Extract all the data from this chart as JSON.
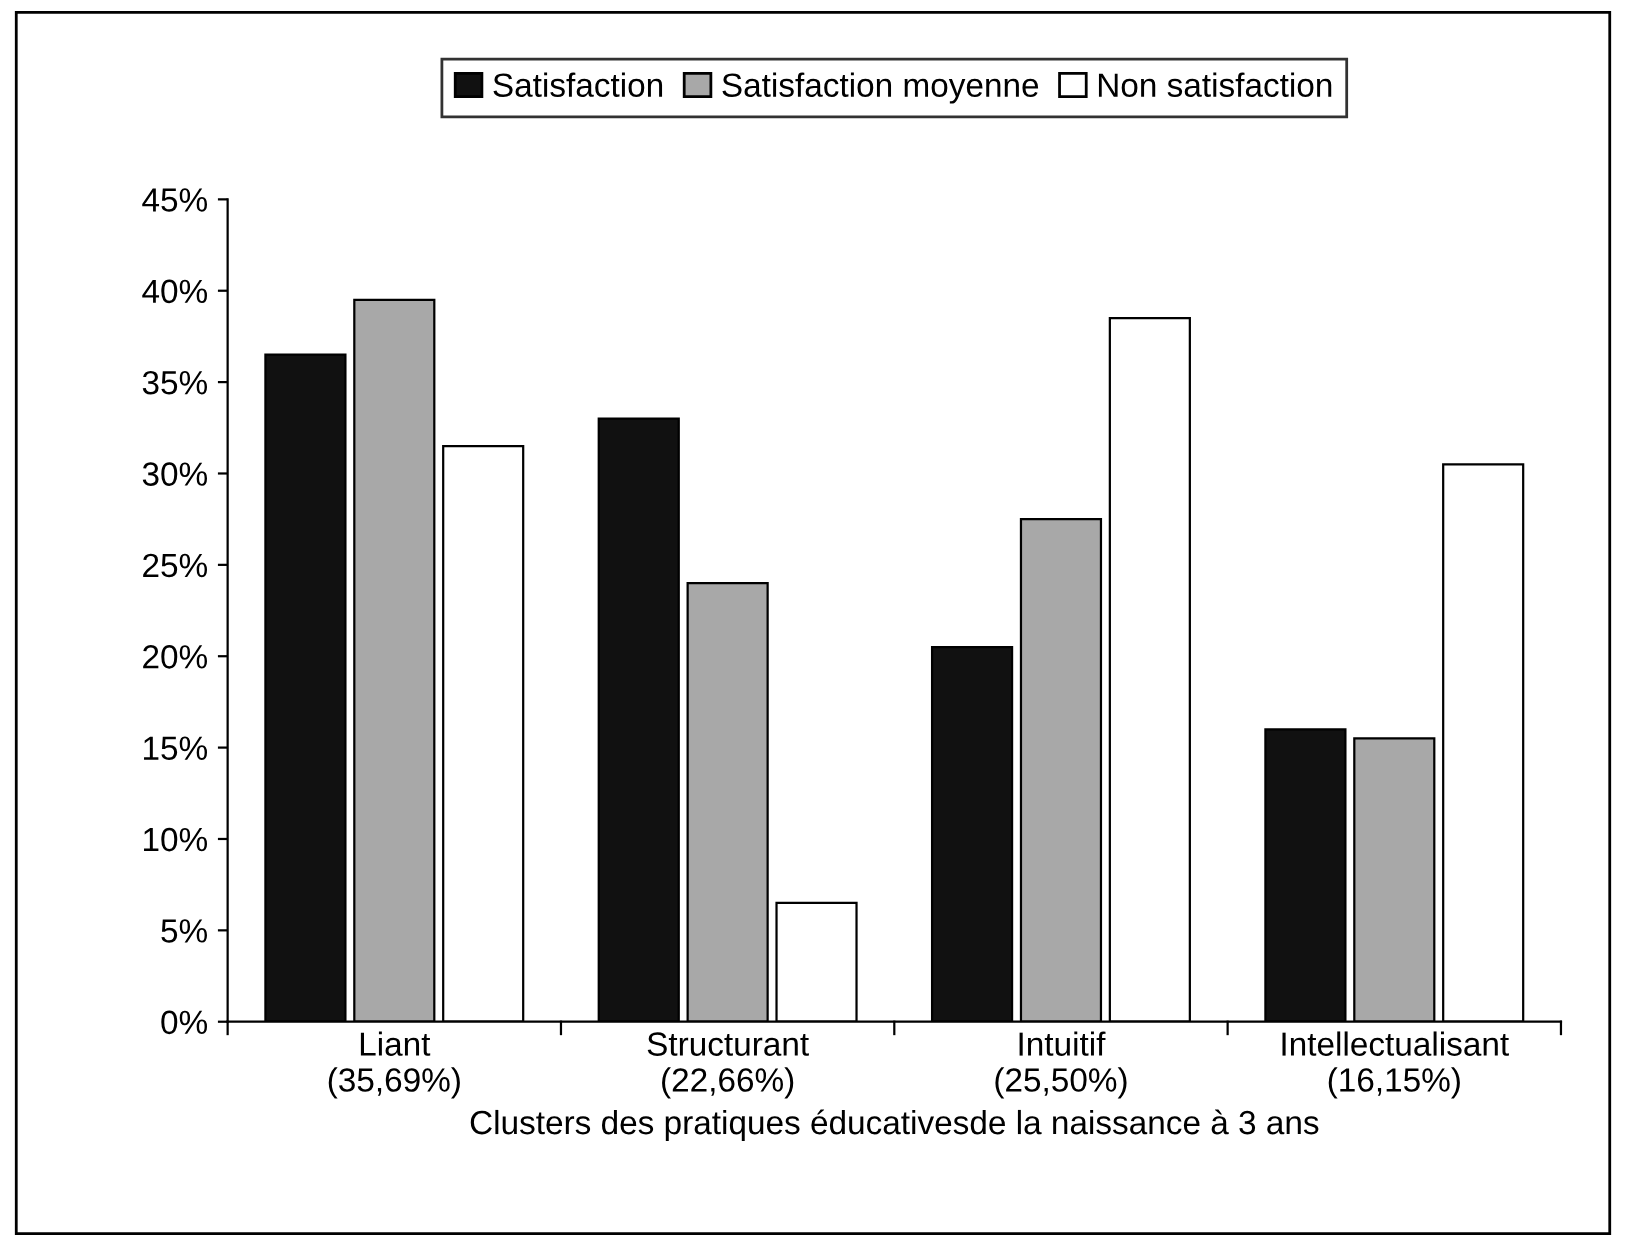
{
  "chart_data": {
    "type": "bar",
    "xlabel": "Clusters des pratiques éducativesde la naissance à 3 ans",
    "categories": [
      "Liant\n(35,69%)",
      "Structurant\n(22,66%)",
      "Intuitif\n(25,50%)",
      "Intellectualisant\n(16,15%)"
    ],
    "series": [
      {
        "name": "Satisfaction",
        "color": "#111111",
        "values": [
          36.5,
          33,
          20.5,
          16
        ]
      },
      {
        "name": "Satisfaction moyenne",
        "color": "#a8a8a8",
        "values": [
          39.5,
          24,
          27.5,
          15.5
        ]
      },
      {
        "name": "Non satisfaction",
        "color": "#ffffff",
        "values": [
          31.5,
          6.5,
          38.5,
          30.5
        ]
      }
    ],
    "ylim": [
      0,
      45
    ],
    "yticks": [
      {
        "value": 0,
        "label": "0%"
      },
      {
        "value": 5,
        "label": "5%"
      },
      {
        "value": 10,
        "label": "10%"
      },
      {
        "value": 15,
        "label": "15%"
      },
      {
        "value": 20,
        "label": "20%"
      },
      {
        "value": 25,
        "label": "25%"
      },
      {
        "value": 30,
        "label": "30%"
      },
      {
        "value": 35,
        "label": "35%"
      },
      {
        "value": 40,
        "label": "40%"
      },
      {
        "value": 45,
        "label": "45%"
      }
    ],
    "grid": false,
    "legend": "top"
  }
}
